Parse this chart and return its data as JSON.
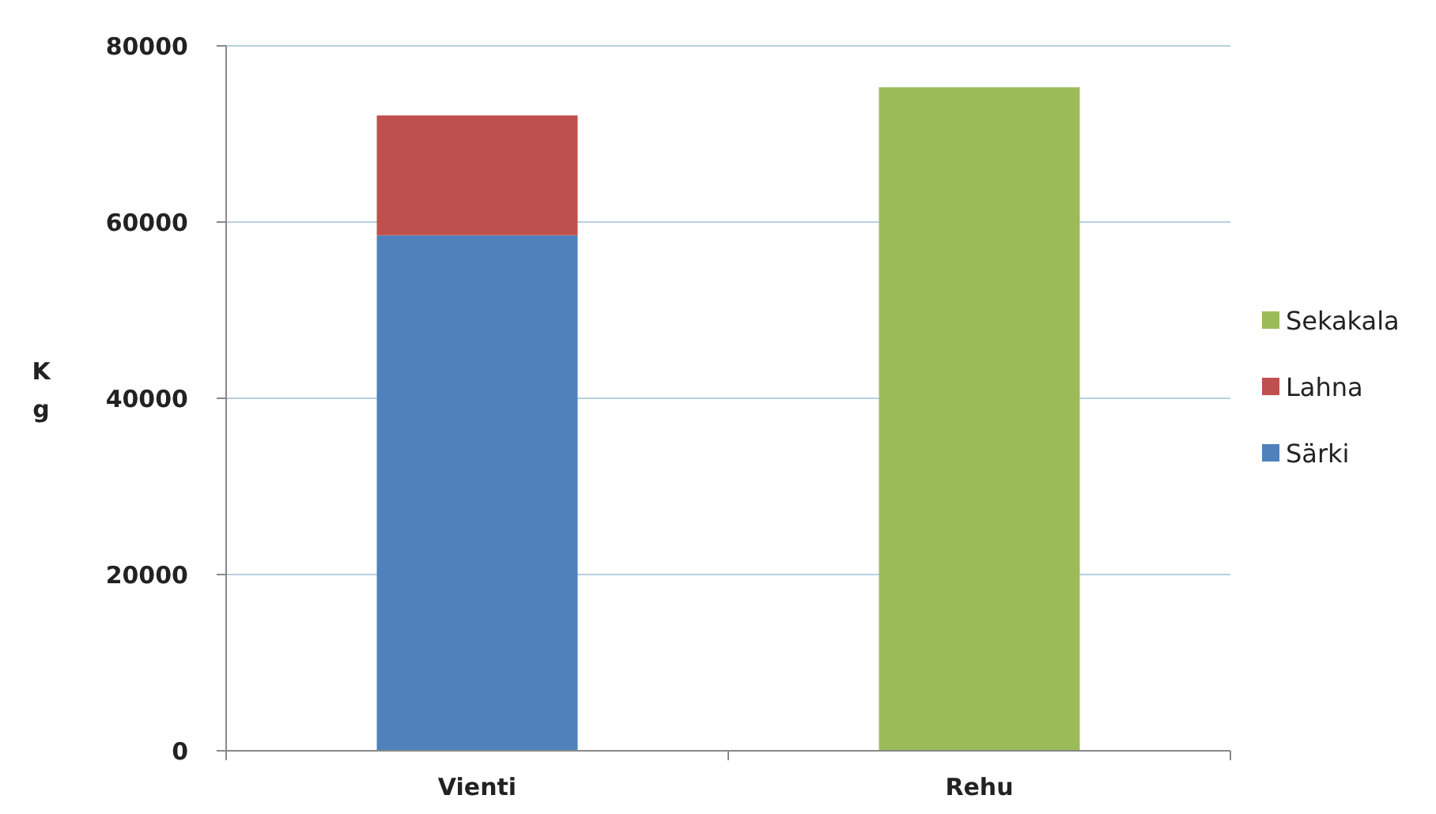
{
  "chart_data": {
    "type": "bar",
    "stacked": true,
    "categories": [
      "Vienti",
      "Rehu"
    ],
    "series": [
      {
        "name": "Särki",
        "color": "#4f81bd",
        "values": [
          58500,
          null
        ]
      },
      {
        "name": "Lahna",
        "color": "#c0504d",
        "values": [
          13600,
          null
        ]
      },
      {
        "name": "Sekakala",
        "color": "#9bbb59",
        "values": [
          null,
          75300
        ]
      }
    ],
    "ylabel": "Kg",
    "ylim": [
      0,
      80000
    ],
    "yticks": [
      0,
      20000,
      40000,
      60000,
      80000
    ],
    "grid": "y",
    "legend": "right"
  }
}
